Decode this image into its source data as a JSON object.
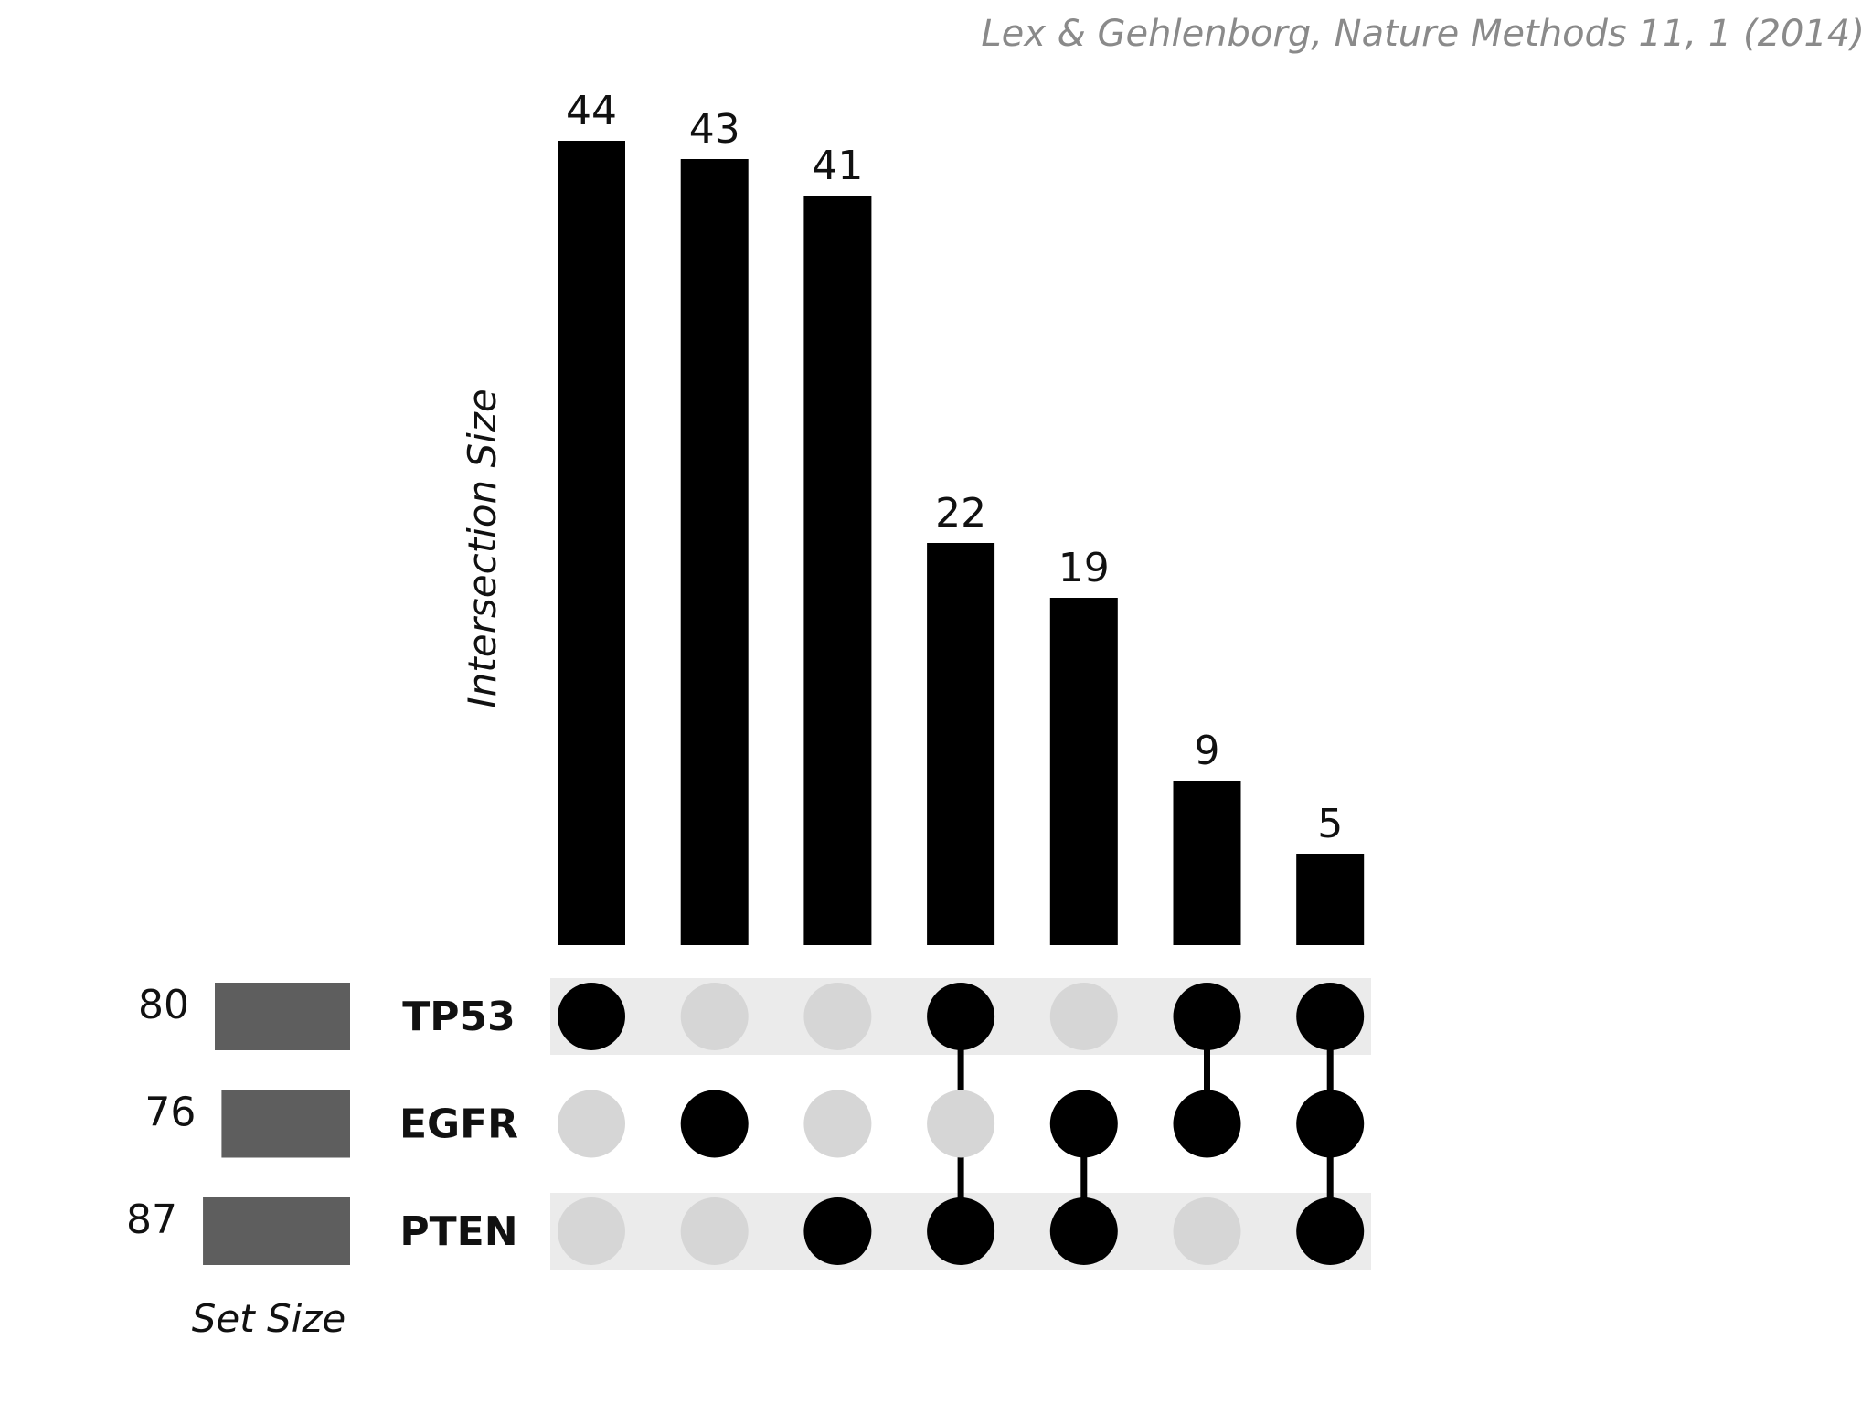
{
  "citation": "Lex & Gehlenborg, Nature Methods 11, 1 (2014)",
  "chart_data": {
    "type": "upset",
    "ylabel": "Intersection Size",
    "set_size_label": "Set Size",
    "sets": [
      {
        "name": "TP53",
        "size": 80
      },
      {
        "name": "EGFR",
        "size": 76
      },
      {
        "name": "PTEN",
        "size": 87
      }
    ],
    "intersections": [
      {
        "sets": [
          "TP53"
        ],
        "value": 44
      },
      {
        "sets": [
          "EGFR"
        ],
        "value": 43
      },
      {
        "sets": [
          "PTEN"
        ],
        "value": 41
      },
      {
        "sets": [
          "TP53",
          "PTEN"
        ],
        "value": 22
      },
      {
        "sets": [
          "EGFR",
          "PTEN"
        ],
        "value": 19
      },
      {
        "sets": [
          "TP53",
          "EGFR"
        ],
        "value": 9
      },
      {
        "sets": [
          "TP53",
          "EGFR",
          "PTEN"
        ],
        "value": 5
      }
    ],
    "colors": {
      "bar": "#000000",
      "set_bar": "#5e5e5e",
      "dot_active": "#000000",
      "dot_inactive": "#d6d6d6",
      "row_stripe": "#ebebeb",
      "citation": "#8a8a8a"
    }
  }
}
